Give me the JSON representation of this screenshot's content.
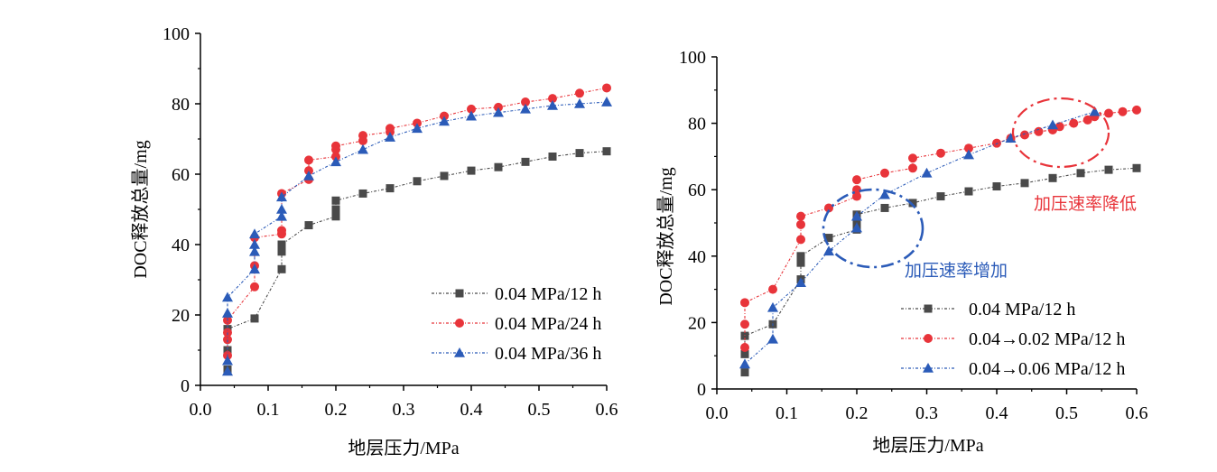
{
  "colors": {
    "black_series": "#4a4a4a",
    "red_series": "#e8343a",
    "blue_series": "#2b5bb8",
    "annotation_red": "#e8343a",
    "annotation_blue": "#2b5bb8"
  },
  "chart_data": [
    {
      "type": "scatter",
      "title": "",
      "xlabel": "地层压力/MPa",
      "ylabel": "DOC释放总量/mg",
      "xlim": [
        0.0,
        0.6
      ],
      "ylim": [
        0,
        100
      ],
      "xticks": [
        "0.0",
        "0.1",
        "0.2",
        "0.3",
        "0.4",
        "0.5",
        "0.6"
      ],
      "yticks": [
        "0",
        "20",
        "40",
        "60",
        "80",
        "100"
      ],
      "grid": false,
      "legend_position": "bottom-right",
      "series": [
        {
          "name": "0.04 MPa/12 h",
          "marker": "square",
          "color": "#4a4a4a",
          "points": [
            [
              0.04,
              4.5
            ],
            [
              0.04,
              10
            ],
            [
              0.04,
              16
            ],
            [
              0.08,
              19
            ],
            [
              0.12,
              33
            ],
            [
              0.12,
              38
            ],
            [
              0.12,
              40
            ],
            [
              0.16,
              45.5
            ],
            [
              0.2,
              48
            ],
            [
              0.2,
              50
            ],
            [
              0.2,
              52.5
            ],
            [
              0.24,
              54.5
            ],
            [
              0.28,
              56
            ],
            [
              0.32,
              58
            ],
            [
              0.36,
              59.5
            ],
            [
              0.4,
              61
            ],
            [
              0.44,
              62
            ],
            [
              0.48,
              63.5
            ],
            [
              0.52,
              65
            ],
            [
              0.56,
              66
            ],
            [
              0.6,
              66.5
            ]
          ]
        },
        {
          "name": "0.04 MPa/24 h",
          "marker": "circle",
          "color": "#e8343a",
          "points": [
            [
              0.04,
              8.5
            ],
            [
              0.04,
              13
            ],
            [
              0.04,
              15
            ],
            [
              0.04,
              18.5
            ],
            [
              0.08,
              28
            ],
            [
              0.08,
              34
            ],
            [
              0.08,
              42
            ],
            [
              0.12,
              43
            ],
            [
              0.12,
              44
            ],
            [
              0.12,
              54.5
            ],
            [
              0.16,
              58.5
            ],
            [
              0.16,
              61
            ],
            [
              0.16,
              64
            ],
            [
              0.2,
              65
            ],
            [
              0.2,
              67
            ],
            [
              0.2,
              68
            ],
            [
              0.24,
              69.5
            ],
            [
              0.24,
              71
            ],
            [
              0.28,
              72
            ],
            [
              0.28,
              73
            ],
            [
              0.32,
              74.5
            ],
            [
              0.36,
              76.5
            ],
            [
              0.4,
              78.5
            ],
            [
              0.44,
              79
            ],
            [
              0.48,
              80.5
            ],
            [
              0.52,
              81.5
            ],
            [
              0.56,
              83
            ],
            [
              0.6,
              84.5
            ]
          ]
        },
        {
          "name": "0.04 MPa/36 h",
          "marker": "triangle",
          "color": "#2b5bb8",
          "points": [
            [
              0.04,
              4
            ],
            [
              0.04,
              7
            ],
            [
              0.04,
              20.5
            ],
            [
              0.04,
              25
            ],
            [
              0.08,
              33
            ],
            [
              0.08,
              38
            ],
            [
              0.08,
              40
            ],
            [
              0.08,
              43
            ],
            [
              0.12,
              48
            ],
            [
              0.12,
              50
            ],
            [
              0.12,
              53.5
            ],
            [
              0.16,
              59.5
            ],
            [
              0.2,
              63.5
            ],
            [
              0.24,
              67
            ],
            [
              0.28,
              70.5
            ],
            [
              0.32,
              73
            ],
            [
              0.36,
              75
            ],
            [
              0.4,
              76.5
            ],
            [
              0.44,
              77.5
            ],
            [
              0.48,
              78.5
            ],
            [
              0.52,
              79.5
            ],
            [
              0.56,
              80
            ],
            [
              0.6,
              80.5
            ]
          ]
        }
      ]
    },
    {
      "type": "scatter",
      "title": "",
      "xlabel": "地层压力/MPa",
      "ylabel": "DOC释放总量/mg",
      "xlim": [
        0.0,
        0.6
      ],
      "ylim": [
        0,
        100
      ],
      "xticks": [
        "0.0",
        "0.1",
        "0.2",
        "0.3",
        "0.4",
        "0.5",
        "0.6"
      ],
      "yticks": [
        "0",
        "20",
        "40",
        "60",
        "80",
        "100"
      ],
      "grid": false,
      "legend_position": "bottom-right",
      "series": [
        {
          "name": "0.04 MPa/12 h",
          "marker": "square",
          "color": "#4a4a4a",
          "points": [
            [
              0.04,
              5
            ],
            [
              0.04,
              10.5
            ],
            [
              0.04,
              16
            ],
            [
              0.08,
              19.5
            ],
            [
              0.12,
              33
            ],
            [
              0.12,
              38
            ],
            [
              0.12,
              40
            ],
            [
              0.16,
              45.5
            ],
            [
              0.2,
              48
            ],
            [
              0.2,
              50
            ],
            [
              0.2,
              52.5
            ],
            [
              0.24,
              54.5
            ],
            [
              0.28,
              56
            ],
            [
              0.32,
              58
            ],
            [
              0.36,
              59.5
            ],
            [
              0.4,
              61
            ],
            [
              0.44,
              62
            ],
            [
              0.48,
              63.5
            ],
            [
              0.52,
              65
            ],
            [
              0.56,
              66
            ],
            [
              0.6,
              66.5
            ]
          ]
        },
        {
          "name": "0.04→0.02 MPa/12 h",
          "marker": "circle",
          "color": "#e8343a",
          "points": [
            [
              0.04,
              12.5
            ],
            [
              0.04,
              19.5
            ],
            [
              0.04,
              26
            ],
            [
              0.08,
              30
            ],
            [
              0.12,
              45
            ],
            [
              0.12,
              49.5
            ],
            [
              0.12,
              52
            ],
            [
              0.16,
              54.5
            ],
            [
              0.2,
              58
            ],
            [
              0.2,
              60
            ],
            [
              0.2,
              63
            ],
            [
              0.24,
              65
            ],
            [
              0.28,
              66.5
            ],
            [
              0.28,
              69.5
            ],
            [
              0.32,
              71
            ],
            [
              0.36,
              72.5
            ],
            [
              0.4,
              74
            ],
            [
              0.42,
              75.5
            ],
            [
              0.44,
              76.5
            ],
            [
              0.46,
              77.5
            ],
            [
              0.48,
              78
            ],
            [
              0.49,
              79
            ],
            [
              0.51,
              80
            ],
            [
              0.53,
              81
            ],
            [
              0.54,
              82
            ],
            [
              0.56,
              83
            ],
            [
              0.58,
              83.5
            ],
            [
              0.6,
              84
            ]
          ]
        },
        {
          "name": "0.04→0.06 MPa/12 h",
          "marker": "triangle",
          "color": "#2b5bb8",
          "points": [
            [
              0.04,
              7.5
            ],
            [
              0.08,
              15
            ],
            [
              0.08,
              24.5
            ],
            [
              0.12,
              32
            ],
            [
              0.16,
              41.5
            ],
            [
              0.2,
              48.5
            ],
            [
              0.2,
              52
            ],
            [
              0.24,
              58.5
            ],
            [
              0.3,
              65
            ],
            [
              0.36,
              70.5
            ],
            [
              0.42,
              75.5
            ],
            [
              0.48,
              79.5
            ],
            [
              0.54,
              83.5
            ]
          ]
        }
      ],
      "annotations": [
        {
          "text": "加压速率降低",
          "color": "#e8343a",
          "encloses_x_range": [
            0.4,
            0.54
          ],
          "encloses_y_range": [
            72,
            88
          ]
        },
        {
          "text": "加压速率增加",
          "color": "#2b5bb8",
          "encloses_x_range": [
            0.16,
            0.3
          ],
          "encloses_y_range": [
            37,
            60
          ]
        }
      ]
    }
  ]
}
